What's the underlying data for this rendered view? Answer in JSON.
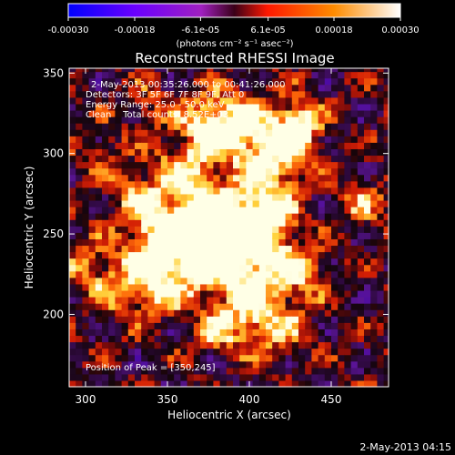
{
  "colorbar": {
    "tick_labels": [
      "-0.00030",
      "-0.00018",
      "-6.1e-05",
      "6.1e-05",
      "0.00018",
      "0.00030"
    ],
    "tick_values": [
      -0.0003,
      -0.00018,
      -6.1e-05,
      6.1e-05,
      0.00018,
      0.0003
    ],
    "range": [
      -0.0003,
      0.0003
    ],
    "unit_label": "(photons cm⁻² s⁻¹ asec⁻²)",
    "colors": [
      "#0000ff",
      "#8000ff",
      "#c030a0",
      "#ff2000",
      "#ff9000",
      "#ffffff"
    ]
  },
  "chart_data": {
    "type": "heatmap",
    "title": "Reconstructed RHESSI Image",
    "xlabel": "Heliocentric X (arcsec)",
    "ylabel": "Heliocentric Y (arcsec)",
    "xlim": [
      290,
      485
    ],
    "ylim": [
      155,
      353
    ],
    "xticks": [
      300,
      350,
      400,
      450
    ],
    "yticks": [
      200,
      250,
      300,
      350
    ],
    "grid": false,
    "peak": [
      350,
      245
    ],
    "annotations": [
      "2-May-2013 00:35:26.000 to 00:41:26.000",
      "Detectors: 3F 5F 6F 7F 8F 9F, Att 0",
      "Energy Range: 25.0 - 50.0 keV",
      "Clean    Total counts: 8.52E+03"
    ],
    "peak_label": "Position of Peak = [350,245]"
  },
  "footer": {
    "timestamp": "2-May-2013 04:15"
  }
}
